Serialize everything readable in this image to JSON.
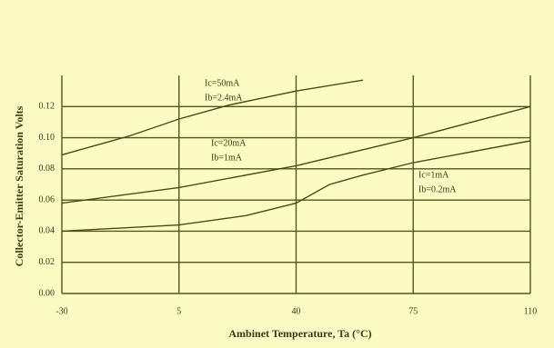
{
  "chart_data": {
    "type": "line",
    "x_label": "Ambinet Temperature, Ta (°C)",
    "y_label": "Collector-Emitter Saturation Volts",
    "xlim": [
      -30,
      110
    ],
    "xticks": [
      -30,
      5,
      40,
      75,
      110
    ],
    "ylim": [
      0,
      0.14
    ],
    "yticks": [
      {
        "value": 0,
        "label": "0.00"
      },
      {
        "value": 0.02,
        "label": "0.02"
      },
      {
        "value": 0.04,
        "label": "0.04"
      },
      {
        "value": 0.06,
        "label": "0.06"
      },
      {
        "value": 0.08,
        "label": "0.08"
      },
      {
        "value": 0.1,
        "label": "0.10"
      },
      {
        "value": 0.12,
        "label": "0.12"
      }
    ],
    "grid": true,
    "series": [
      {
        "name": "Ic=50mA",
        "name2": "Ib=2.4mA",
        "color": "#4a4a1c",
        "x": [
          -30,
          -10,
          5,
          20,
          40,
          60
        ],
        "values": [
          0.089,
          0.101,
          0.112,
          0.121,
          0.13,
          0.137
        ]
      },
      {
        "name": "Ic=20mA",
        "name2": "Ib=1mA",
        "color": "#4a4a1c",
        "x": [
          -30,
          5,
          40,
          75,
          110
        ],
        "values": [
          0.058,
          0.068,
          0.082,
          0.1,
          0.12
        ]
      },
      {
        "name": "Ic=1mA",
        "name2": "Ib=0.2mA",
        "color": "#4a4a1c",
        "x": [
          -30,
          5,
          25,
          40,
          50,
          60,
          75,
          110
        ],
        "values": [
          0.04,
          0.044,
          0.05,
          0.058,
          0.07,
          0.076,
          0.084,
          0.098
        ]
      }
    ]
  }
}
